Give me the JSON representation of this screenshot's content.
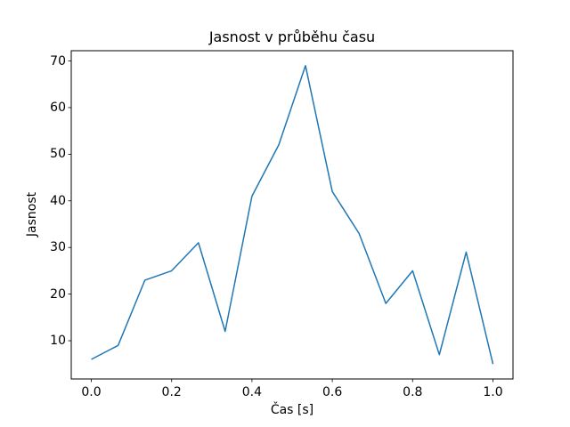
{
  "page": {
    "background": "#ffffff"
  },
  "chart_data": {
    "type": "line",
    "title": "Jasnost v průběhu času",
    "xlabel": "Čas [s]",
    "ylabel": "Jasnost",
    "x": [
      0.0,
      0.0667,
      0.1333,
      0.2,
      0.2667,
      0.3333,
      0.4,
      0.4667,
      0.5333,
      0.6,
      0.6667,
      0.7333,
      0.8,
      0.8667,
      0.9333,
      1.0
    ],
    "y": [
      6,
      9,
      23,
      25,
      31,
      12,
      41,
      52,
      69,
      42,
      33,
      18,
      25,
      7,
      29,
      5
    ],
    "xlim": [
      -0.05,
      1.05
    ],
    "ylim": [
      1.8,
      72.2
    ],
    "xticks": {
      "values": [
        0.0,
        0.2,
        0.4,
        0.6,
        0.8,
        1.0
      ],
      "labels": [
        "0.0",
        "0.2",
        "0.4",
        "0.6",
        "0.8",
        "1.0"
      ]
    },
    "yticks": {
      "values": [
        10,
        20,
        30,
        40,
        50,
        60,
        70
      ],
      "labels": [
        "10",
        "20",
        "30",
        "40",
        "50",
        "60",
        "70"
      ]
    },
    "grid": false,
    "legend": "none",
    "line_width": 1.5,
    "colors": {
      "line": "#1f77b4",
      "axis": "#000000",
      "text": "#000000",
      "background": "#ffffff"
    }
  }
}
